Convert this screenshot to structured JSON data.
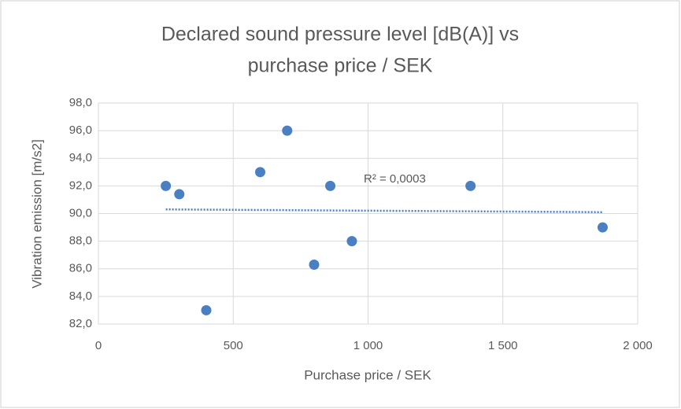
{
  "chart_data": {
    "type": "scatter",
    "title": [
      "Declared sound pressure level [dB(A)] vs",
      "purchase price / SEK"
    ],
    "x_label": "Purchase price / SEK",
    "y_label": "Vibration emission [m/s2]",
    "series": [
      {
        "name": "Vibration emission",
        "color": "#4a7fc1",
        "x": [
          250,
          300,
          400,
          600,
          700,
          800,
          860,
          940,
          1380,
          1870
        ],
        "values": [
          92.0,
          91.4,
          83.0,
          93.0,
          96.0,
          86.3,
          92.0,
          88.0,
          92.0,
          89.0
        ]
      }
    ],
    "trendline": {
      "color": "#4a7fc1",
      "x": [
        250,
        1870
      ],
      "values": [
        90.3,
        90.1
      ],
      "label": "R² = 0,0003"
    },
    "xlim": [
      0,
      2000
    ],
    "xticks": [
      0,
      500,
      {
        "value": 1000,
        "label": "1 000"
      },
      {
        "value": 1500,
        "label": "1 500"
      },
      {
        "value": 2000,
        "label": "2 000"
      }
    ],
    "ylim": [
      82,
      98
    ],
    "yticks": [
      {
        "value": 82,
        "label": "82,0"
      },
      {
        "value": 84,
        "label": "84,0"
      },
      {
        "value": 86,
        "label": "86,0"
      },
      {
        "value": 88,
        "label": "88,0"
      },
      {
        "value": 90,
        "label": "90,0"
      },
      {
        "value": 92,
        "label": "92,0"
      },
      {
        "value": 94,
        "label": "94,0"
      },
      {
        "value": 96,
        "label": "96,0"
      },
      {
        "value": 98,
        "label": "98,0"
      }
    ],
    "grid": true
  }
}
